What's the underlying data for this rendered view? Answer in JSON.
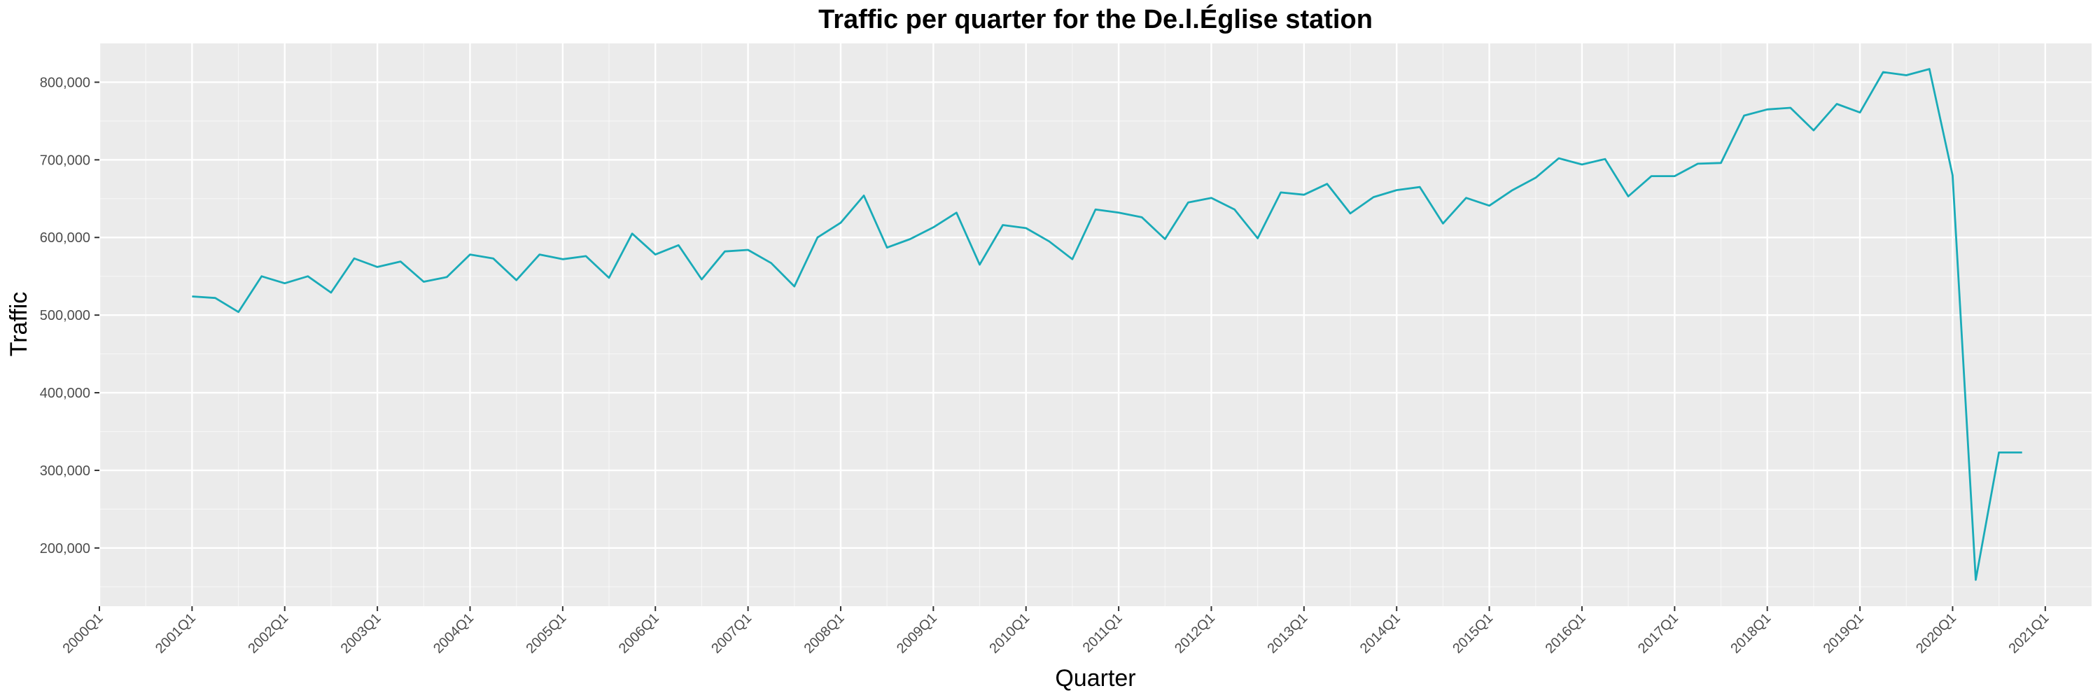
{
  "chart_data": {
    "type": "line",
    "title": "Traffic per quarter for the De.l.Église station",
    "xlabel": "Quarter",
    "ylabel": "Traffic",
    "x_tick_labels": [
      "2000Q1",
      "2001Q1",
      "2002Q1",
      "2003Q1",
      "2004Q1",
      "2005Q1",
      "2006Q1",
      "2007Q1",
      "2008Q1",
      "2009Q1",
      "2010Q1",
      "2011Q1",
      "2012Q1",
      "2013Q1",
      "2014Q1",
      "2015Q1",
      "2016Q1",
      "2017Q1",
      "2018Q1",
      "2019Q1",
      "2020Q1",
      "2021Q1"
    ],
    "y_ticks": [
      200000,
      300000,
      400000,
      500000,
      600000,
      700000,
      800000
    ],
    "y_tick_labels": [
      "200,000",
      "300,000",
      "400,000",
      "500,000",
      "600,000",
      "700,000",
      "800,000"
    ],
    "ylim": [
      125000,
      850000
    ],
    "xlim": [
      "2000Q1",
      "2021Q3"
    ],
    "grid": true,
    "colors": {
      "line": "#1aabb8",
      "panel_background": "#ebebeb",
      "grid_major": "#ffffff"
    },
    "series": [
      {
        "x": [
          "2001Q1",
          "2001Q2",
          "2001Q3",
          "2001Q4",
          "2002Q1",
          "2002Q2",
          "2002Q3",
          "2002Q4",
          "2003Q1",
          "2003Q2",
          "2003Q3",
          "2003Q4",
          "2004Q1",
          "2004Q2",
          "2004Q3",
          "2004Q4",
          "2005Q1",
          "2005Q2",
          "2005Q3",
          "2005Q4",
          "2006Q1",
          "2006Q2",
          "2006Q3",
          "2006Q4",
          "2007Q1",
          "2007Q2",
          "2007Q3",
          "2007Q4",
          "2008Q1",
          "2008Q2",
          "2008Q3",
          "2008Q4",
          "2009Q1",
          "2009Q2",
          "2009Q3",
          "2009Q4",
          "2010Q1",
          "2010Q2",
          "2010Q3",
          "2010Q4",
          "2011Q1",
          "2011Q2",
          "2011Q3",
          "2011Q4",
          "2012Q1",
          "2012Q2",
          "2012Q3",
          "2012Q4",
          "2013Q1",
          "2013Q2",
          "2013Q3",
          "2013Q4",
          "2014Q1",
          "2014Q2",
          "2014Q3",
          "2014Q4",
          "2015Q1",
          "2015Q2",
          "2015Q3",
          "2015Q4",
          "2016Q1",
          "2016Q2",
          "2016Q3",
          "2016Q4",
          "2017Q1",
          "2017Q2",
          "2017Q3",
          "2017Q4",
          "2018Q1",
          "2018Q2",
          "2018Q3",
          "2018Q4",
          "2019Q1",
          "2019Q2",
          "2019Q3",
          "2019Q4",
          "2020Q1",
          "2020Q2",
          "2020Q3",
          "2020Q4"
        ],
        "values": [
          524000,
          522000,
          504000,
          550000,
          541000,
          550000,
          529000,
          573000,
          562000,
          569000,
          543000,
          549000,
          578000,
          573000,
          545000,
          578000,
          572000,
          576000,
          548000,
          605000,
          578000,
          590000,
          546000,
          582000,
          584000,
          567000,
          537000,
          600000,
          619000,
          654000,
          587000,
          598000,
          613000,
          632000,
          565000,
          616000,
          612000,
          595000,
          572000,
          636000,
          632000,
          626000,
          598000,
          645000,
          651000,
          636000,
          599000,
          658000,
          655000,
          669000,
          631000,
          652000,
          661000,
          665000,
          618000,
          651000,
          641000,
          661000,
          677000,
          702000,
          694000,
          701000,
          653000,
          679000,
          679000,
          695000,
          696000,
          757000,
          765000,
          767000,
          738000,
          772000,
          761000,
          813000,
          809000,
          817000,
          680000,
          159000,
          323000,
          323000
        ]
      }
    ]
  }
}
